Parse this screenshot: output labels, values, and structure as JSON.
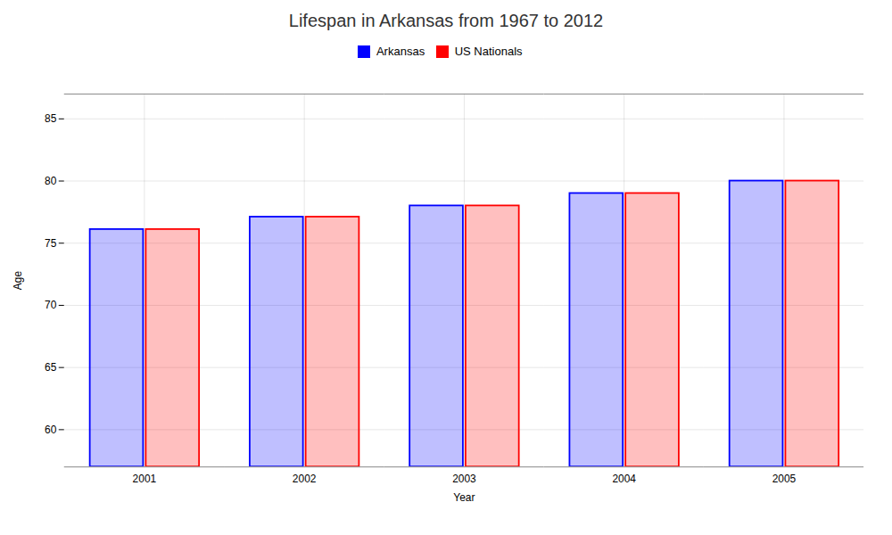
{
  "chart_data": {
    "type": "bar",
    "title": "Lifespan in Arkansas from 1967 to 2012",
    "x_label": "Year",
    "y_label": "Age",
    "categories": [
      "2001",
      "2002",
      "2003",
      "2004",
      "2005"
    ],
    "series": [
      {
        "name": "Arkansas",
        "color": "#0000ff",
        "values": [
          76.1,
          77.1,
          78.0,
          79.0,
          80.0
        ]
      },
      {
        "name": "US Nationals",
        "color": "#ff0000",
        "values": [
          76.1,
          77.1,
          78.0,
          79.0,
          80.0
        ]
      }
    ],
    "ylim": [
      57,
      87
    ],
    "yticks": [
      60,
      65,
      70,
      75,
      80,
      85
    ],
    "grid": true,
    "legend": "top"
  }
}
